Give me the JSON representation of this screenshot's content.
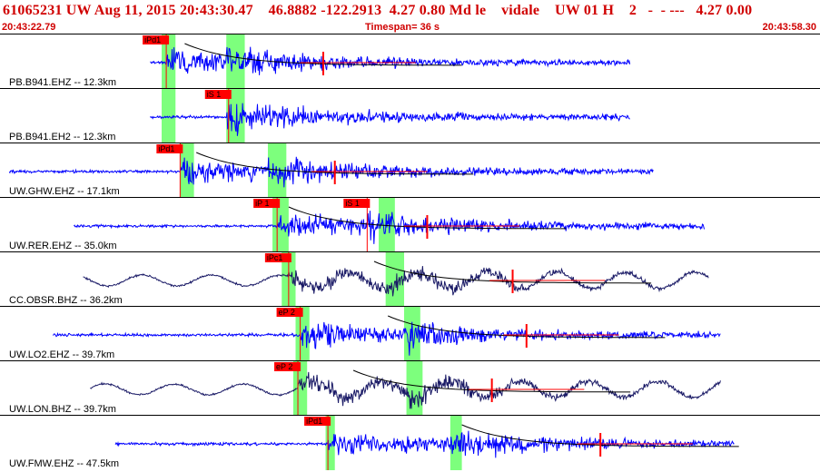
{
  "header": {
    "title": "61065231 UW Aug 11, 2015 20:43:30.47    46.8882 -122.2913  4.27 0.80 Md le    vidale    UW 01 H    2   -  - ---   4.27 0.00",
    "start_time": "20:43:22.79",
    "timespan": "Timespan=  36 s",
    "end_time": "20:43:58.30"
  },
  "colors": {
    "title": "#d00000",
    "trace_blue": "#0000ff",
    "trace_dark": "#1a1a66",
    "pick": "#ff0000",
    "window": "#7dff7d",
    "coda": "#000000"
  },
  "traces": [
    {
      "label": "PB.B941.EHZ -- 12.3km",
      "color": "#0000ff",
      "time_range_s": [
        6.5,
        27.3
      ],
      "picks": [
        {
          "label": "iPd1",
          "time_s": 7.2
        }
      ],
      "windows_s": [
        [
          7.0,
          7.6
        ],
        [
          9.8,
          10.6
        ]
      ],
      "coda_from_s": 8.0
    },
    {
      "label": "PB.B941.EH2 -- 12.3km",
      "color": "#0000ff",
      "time_range_s": [
        6.5,
        27.3
      ],
      "picks": [
        {
          "label": "iS 1",
          "time_s": 9.9
        }
      ],
      "windows_s": [
        [
          7.0,
          7.6
        ],
        [
          9.8,
          10.6
        ]
      ],
      "coda_from_s": null
    },
    {
      "label": "UW.GHW.EHZ -- 17.1km",
      "color": "#0000ff",
      "time_range_s": [
        0.4,
        28.3
      ],
      "picks": [
        {
          "label": "iPd1",
          "time_s": 7.8
        }
      ],
      "windows_s": [
        [
          7.8,
          8.4
        ],
        [
          11.6,
          12.4
        ]
      ],
      "coda_from_s": 8.5
    },
    {
      "label": "UW.RER.EHZ -- 35.0km",
      "color": "#0000ff",
      "time_range_s": [
        3.2,
        30.5
      ],
      "picks": [
        {
          "label": "iP 1",
          "time_s": 12.0
        },
        {
          "label": "iS 1",
          "time_s": 15.9
        }
      ],
      "windows_s": [
        [
          11.8,
          12.5
        ],
        [
          16.4,
          17.1
        ]
      ],
      "coda_from_s": 12.5
    },
    {
      "label": "CC.OBSR.BHZ -- 36.2km",
      "color": "#1a1a66",
      "time_range_s": [
        3.6,
        30.7
      ],
      "picks": [
        {
          "label": "iPc1",
          "time_s": 12.5
        }
      ],
      "windows_s": [
        [
          12.2,
          12.8
        ],
        [
          16.7,
          17.5
        ]
      ],
      "coda_from_s": 16.2
    },
    {
      "label": "UW.LO2.EHZ -- 39.7km",
      "color": "#0000ff",
      "time_range_s": [
        2.3,
        31.2
      ],
      "picks": [
        {
          "label": "eP 2",
          "time_s": 13.0
        }
      ],
      "windows_s": [
        [
          12.8,
          13.4
        ],
        [
          17.5,
          18.2
        ]
      ],
      "coda_from_s": 16.8
    },
    {
      "label": "UW.LON.BHZ -- 39.7km",
      "color": "#1a1a66",
      "time_range_s": [
        3.9,
        31.2
      ],
      "picks": [
        {
          "label": "eP 2",
          "time_s": 12.9
        }
      ],
      "windows_s": [
        [
          12.7,
          13.3
        ],
        [
          17.6,
          18.3
        ]
      ],
      "coda_from_s": 15.3
    },
    {
      "label": "UW.FMW.EHZ -- 47.5km",
      "color": "#0000ff",
      "time_range_s": [
        5.0,
        31.8
      ],
      "picks": [
        {
          "label": "iPd1",
          "time_s": 14.2
        }
      ],
      "windows_s": [
        [
          14.1,
          14.5
        ],
        [
          19.5,
          20.0
        ]
      ],
      "coda_from_s": 20.0
    }
  ]
}
